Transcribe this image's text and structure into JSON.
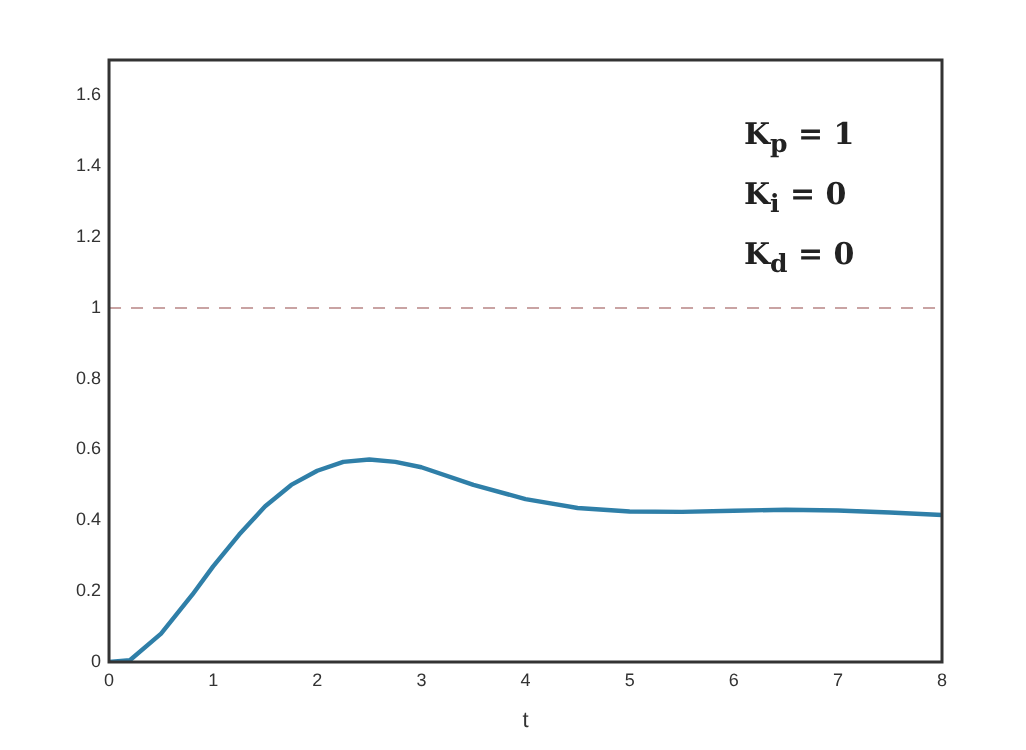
{
  "chart_data": {
    "type": "line",
    "xlabel": "t",
    "x": [
      0,
      0.2,
      0.5,
      0.8,
      1,
      1.25,
      1.5,
      1.75,
      2,
      2.25,
      2.5,
      2.75,
      3,
      3.5,
      4,
      4.5,
      5,
      5.5,
      6,
      6.5,
      7,
      7.5,
      8
    ],
    "series": [
      {
        "color": "#2f7fa8",
        "values": [
          0,
          0.005,
          0.08,
          0.19,
          0.27,
          0.36,
          0.44,
          0.5,
          0.54,
          0.565,
          0.572,
          0.565,
          0.55,
          0.5,
          0.46,
          0.435,
          0.425,
          0.424,
          0.427,
          0.43,
          0.428,
          0.422,
          0.415
        ]
      }
    ],
    "xlim": [
      0,
      8
    ],
    "xticks": [
      0,
      1,
      2,
      3,
      4,
      5,
      6,
      7,
      8
    ],
    "ylim": [
      0,
      1.7
    ],
    "yticks": [
      0,
      0.2,
      0.4,
      0.6,
      0.8,
      1,
      1.2,
      1.4,
      1.6
    ],
    "ref_lines": [
      {
        "axis": "y",
        "value": 1,
        "color": "#c9a3a3",
        "line_style": "dashed"
      }
    ],
    "annotations": [
      "K$_{p}$ = 1",
      "K$_{i}$ = 0",
      "K$_{d}$ = 0"
    ],
    "grid": false,
    "legend": false,
    "marker": "none",
    "line_style": "solid"
  }
}
